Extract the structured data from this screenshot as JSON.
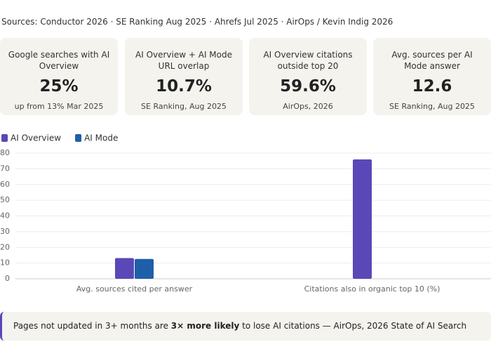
{
  "sources": "Sources: Conductor 2026 · SE Ranking Aug 2025 · Ahrefs Jul 2025 · AirOps / Kevin Indig 2026",
  "cards": [
    {
      "label": "Google searches with AI Overview",
      "value": "25%",
      "note": "up from 13% Mar 2025"
    },
    {
      "label": "AI Overview + AI Mode URL overlap",
      "value": "10.7%",
      "note": "SE Ranking, Aug 2025"
    },
    {
      "label": "AI Overview citations outside top 20",
      "value": "59.6%",
      "note": "AirOps, 2026"
    },
    {
      "label": "Avg. sources per AI Mode answer",
      "value": "12.6",
      "note": "SE Ranking, Aug 2025"
    }
  ],
  "chart_data": {
    "type": "bar",
    "categories": [
      "Avg. sources cited per answer",
      "Citations also in organic top 10 (%)"
    ],
    "series": [
      {
        "name": "AI Overview",
        "color": "#5a48b8",
        "values": [
          13.2,
          76
        ]
      },
      {
        "name": "AI Mode",
        "color": "#1f5ea8",
        "values": [
          12.6,
          null
        ]
      }
    ],
    "ylim": [
      0,
      80
    ],
    "yticks": [
      0,
      10,
      20,
      30,
      40,
      50,
      60,
      70,
      80
    ],
    "grid": true,
    "legend": "top-left"
  },
  "callout": {
    "before": "Pages not updated in 3+ months are ",
    "bold": "3× more likely",
    "after": " to lose AI citations — AirOps, 2026 State of AI Search"
  }
}
